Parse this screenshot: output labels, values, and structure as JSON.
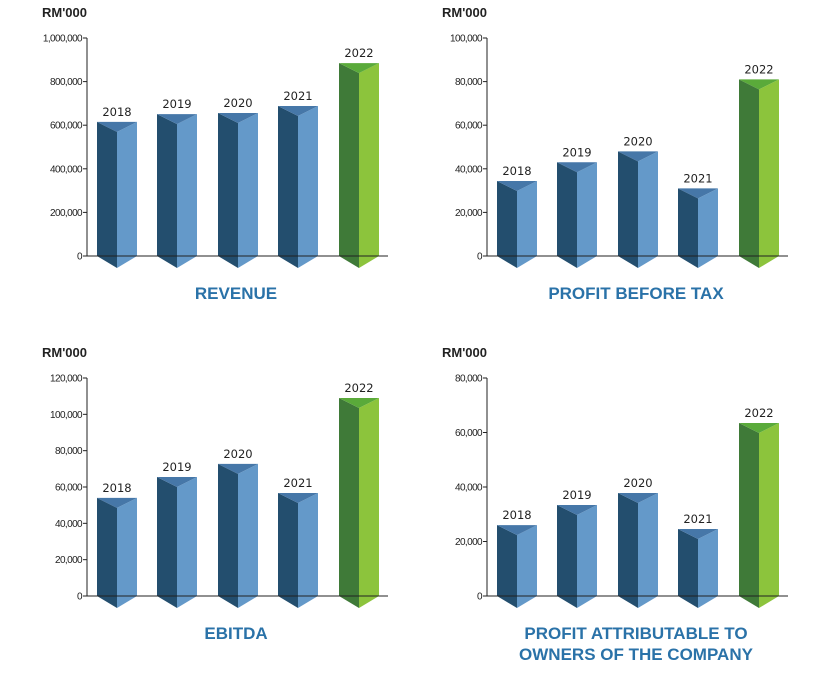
{
  "chart_data": [
    {
      "type": "bar",
      "title": [
        "REVENUE"
      ],
      "ylabel": "RM'000",
      "categories": [
        "2018",
        "2019",
        "2020",
        "2021",
        "2022"
      ],
      "values": [
        615000,
        651000,
        656000,
        688000,
        885000
      ],
      "ylim": [
        0,
        1000000
      ],
      "yticks": [
        0,
        200000,
        400000,
        600000,
        800000,
        1000000
      ],
      "ytick_labels": [
        "0",
        "200,000",
        "400,000",
        "600,000",
        "800,000",
        "1,000,000"
      ]
    },
    {
      "type": "bar",
      "title": [
        "PROFIT BEFORE TAX"
      ],
      "ylabel": "RM'000",
      "categories": [
        "2018",
        "2019",
        "2020",
        "2021",
        "2022"
      ],
      "values": [
        34400,
        43000,
        48000,
        31000,
        81000
      ],
      "ylim": [
        0,
        100000
      ],
      "yticks": [
        0,
        20000,
        40000,
        60000,
        80000,
        100000
      ],
      "ytick_labels": [
        "0",
        "20,000",
        "40,000",
        "60,000",
        "80,000",
        "100,000"
      ]
    },
    {
      "type": "bar",
      "title": [
        "EBITDA"
      ],
      "ylabel": "RM'000",
      "categories": [
        "2018",
        "2019",
        "2020",
        "2021",
        "2022"
      ],
      "values": [
        54000,
        65500,
        72700,
        56700,
        109000
      ],
      "ylim": [
        0,
        120000
      ],
      "yticks": [
        0,
        20000,
        40000,
        60000,
        80000,
        100000,
        120000
      ],
      "ytick_labels": [
        "0",
        "20,000",
        "40,000",
        "60,000",
        "80,000",
        "100,000",
        "120,000"
      ]
    },
    {
      "type": "bar",
      "title": [
        "PROFIT ATTRIBUTABLE TO",
        "OWNERS OF THE COMPANY"
      ],
      "ylabel": "RM'000",
      "categories": [
        "2018",
        "2019",
        "2020",
        "2021",
        "2022"
      ],
      "values": [
        26000,
        33400,
        37800,
        24600,
        63500
      ],
      "ylim": [
        0,
        80000
      ],
      "yticks": [
        0,
        20000,
        40000,
        60000,
        80000
      ],
      "ytick_labels": [
        "0",
        "20,000",
        "40,000",
        "60,000",
        "80,000"
      ]
    }
  ],
  "colors": {
    "past_dark": "#234e6e",
    "past_light": "#6499c9",
    "past_cap": "#4677a8",
    "current_dark": "#3f7a38",
    "current_light": "#8cc43c",
    "current_cap": "#5aaa3a",
    "title": "#2a72a8"
  }
}
